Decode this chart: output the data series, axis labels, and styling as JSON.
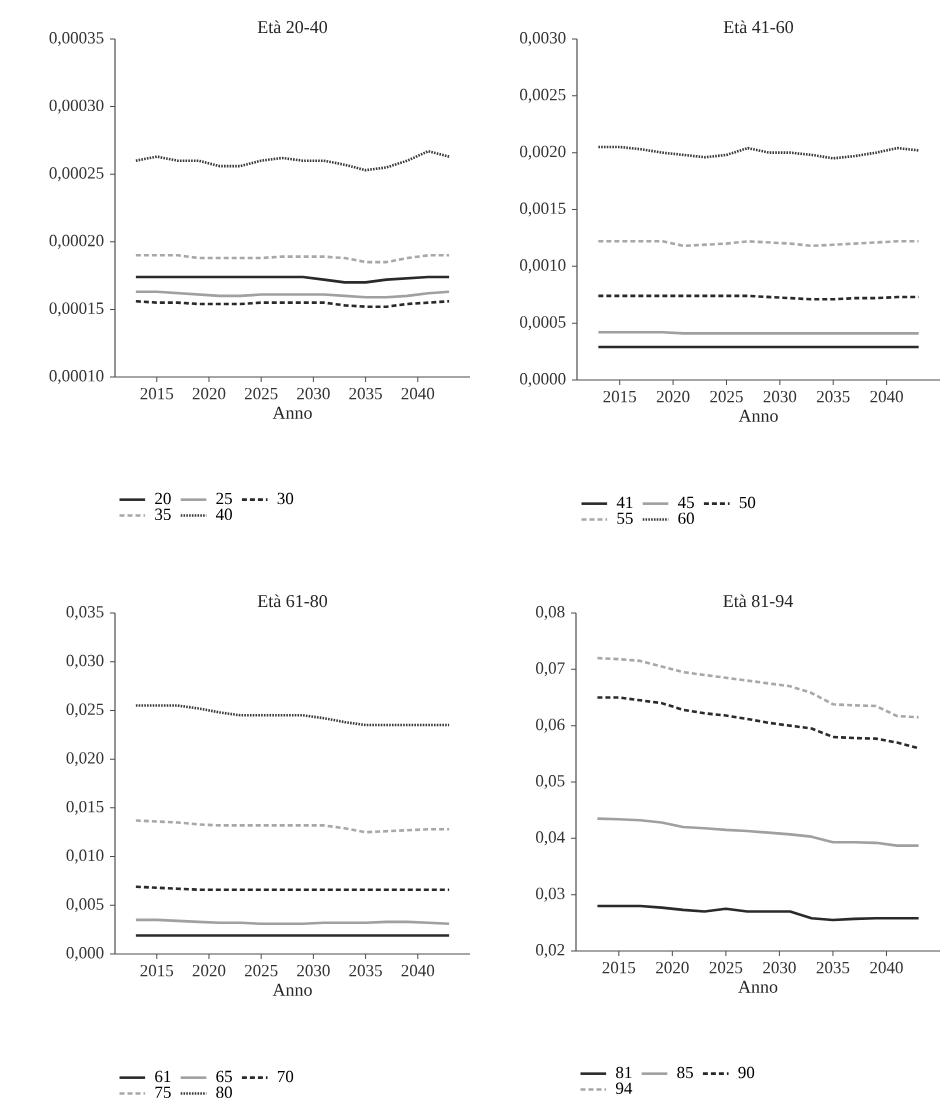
{
  "chart_data": [
    {
      "type": "line",
      "title": "Età 20-40",
      "xlabel": "Anno",
      "legend": "bottom",
      "grid": false,
      "x": [
        2013,
        2015,
        2017,
        2019,
        2021,
        2023,
        2025,
        2027,
        2029,
        2031,
        2033,
        2035,
        2037,
        2039,
        2041,
        2043
      ],
      "xlim": [
        2011,
        2045
      ],
      "xticks": [
        2015,
        2020,
        2025,
        2030,
        2035,
        2040
      ],
      "ylim": [
        0.0001,
        0.00035
      ],
      "yticks": [
        {
          "value": 0.0001,
          "label": "0,00010"
        },
        {
          "value": 0.00015,
          "label": "0,00015"
        },
        {
          "value": 0.0002,
          "label": "0,00020"
        },
        {
          "value": 0.00025,
          "label": "0,00025"
        },
        {
          "value": 0.0003,
          "label": "0,00030"
        },
        {
          "value": 0.00035,
          "label": "0,00035"
        }
      ],
      "series": [
        {
          "name": "20",
          "color": "#2a2a2a",
          "line_style": "solid",
          "values": [
            0.000174,
            0.000174,
            0.000174,
            0.000174,
            0.000174,
            0.000174,
            0.000174,
            0.000174,
            0.000174,
            0.000172,
            0.00017,
            0.00017,
            0.000172,
            0.000173,
            0.000174,
            0.000174
          ]
        },
        {
          "name": "25",
          "color": "#a0a0a0",
          "line_style": "solid",
          "values": [
            0.000163,
            0.000163,
            0.000162,
            0.000161,
            0.00016,
            0.00016,
            0.000161,
            0.000161,
            0.000161,
            0.000161,
            0.00016,
            0.000159,
            0.000159,
            0.00016,
            0.000162,
            0.000163
          ]
        },
        {
          "name": "30",
          "color": "#2a2a2a",
          "line_style": "dashed",
          "values": [
            0.000156,
            0.000155,
            0.000155,
            0.000154,
            0.000154,
            0.000154,
            0.000155,
            0.000155,
            0.000155,
            0.000155,
            0.000153,
            0.000152,
            0.000152,
            0.000154,
            0.000155,
            0.000156
          ]
        },
        {
          "name": "35",
          "color": "#a8a8a8",
          "line_style": "dashed",
          "values": [
            0.00019,
            0.00019,
            0.00019,
            0.000188,
            0.000188,
            0.000188,
            0.000188,
            0.000189,
            0.000189,
            0.000189,
            0.000188,
            0.000185,
            0.000185,
            0.000188,
            0.00019,
            0.00019
          ]
        },
        {
          "name": "40",
          "color": "#3a3a3a",
          "line_style": "dotted",
          "values": [
            0.00026,
            0.000263,
            0.00026,
            0.00026,
            0.000256,
            0.000256,
            0.00026,
            0.000262,
            0.00026,
            0.00026,
            0.000257,
            0.000253,
            0.000255,
            0.00026,
            0.000267,
            0.000263
          ]
        }
      ]
    },
    {
      "type": "line",
      "title": "Età 41-60",
      "xlabel": "Anno",
      "legend": "bottom",
      "grid": false,
      "x": [
        2013,
        2015,
        2017,
        2019,
        2021,
        2023,
        2025,
        2027,
        2029,
        2031,
        2033,
        2035,
        2037,
        2039,
        2041,
        2043
      ],
      "xlim": [
        2011,
        2045
      ],
      "xticks": [
        2015,
        2020,
        2025,
        2030,
        2035,
        2040
      ],
      "ylim": [
        0,
        0.003
      ],
      "yticks": [
        {
          "value": 0,
          "label": "0,0000"
        },
        {
          "value": 0.0005,
          "label": "0,0005"
        },
        {
          "value": 0.001,
          "label": "0,0010"
        },
        {
          "value": 0.0015,
          "label": "0,0015"
        },
        {
          "value": 0.002,
          "label": "0,0020"
        },
        {
          "value": 0.0025,
          "label": "0,0025"
        },
        {
          "value": 0.003,
          "label": "0,0030"
        }
      ],
      "series": [
        {
          "name": "41",
          "color": "#2a2a2a",
          "line_style": "solid",
          "values": [
            0.00029,
            0.00029,
            0.00029,
            0.00029,
            0.00029,
            0.00029,
            0.00029,
            0.00029,
            0.00029,
            0.00029,
            0.00029,
            0.00029,
            0.00029,
            0.00029,
            0.00029,
            0.00029
          ]
        },
        {
          "name": "45",
          "color": "#a0a0a0",
          "line_style": "solid",
          "values": [
            0.00042,
            0.00042,
            0.00042,
            0.00042,
            0.00041,
            0.00041,
            0.00041,
            0.00041,
            0.00041,
            0.00041,
            0.00041,
            0.00041,
            0.00041,
            0.00041,
            0.00041,
            0.00041
          ]
        },
        {
          "name": "50",
          "color": "#2a2a2a",
          "line_style": "dashed",
          "values": [
            0.00074,
            0.00074,
            0.00074,
            0.00074,
            0.00074,
            0.00074,
            0.00074,
            0.00074,
            0.00073,
            0.00072,
            0.00071,
            0.00071,
            0.00072,
            0.00072,
            0.00073,
            0.00073
          ]
        },
        {
          "name": "55",
          "color": "#a8a8a8",
          "line_style": "dashed",
          "values": [
            0.00122,
            0.00122,
            0.00122,
            0.00122,
            0.00118,
            0.00119,
            0.0012,
            0.00122,
            0.00121,
            0.0012,
            0.00118,
            0.00119,
            0.0012,
            0.00121,
            0.00122,
            0.00122
          ]
        },
        {
          "name": "60",
          "color": "#3a3a3a",
          "line_style": "dotted",
          "values": [
            0.00205,
            0.00205,
            0.00203,
            0.002,
            0.00198,
            0.00196,
            0.00198,
            0.00204,
            0.002,
            0.002,
            0.00198,
            0.00195,
            0.00197,
            0.002,
            0.00204,
            0.00202
          ]
        }
      ]
    },
    {
      "type": "line",
      "title": "Età 61-80",
      "xlabel": "Anno",
      "legend": "bottom",
      "grid": false,
      "x": [
        2013,
        2015,
        2017,
        2019,
        2021,
        2023,
        2025,
        2027,
        2029,
        2031,
        2033,
        2035,
        2037,
        2039,
        2041,
        2043
      ],
      "xlim": [
        2011,
        2045
      ],
      "xticks": [
        2015,
        2020,
        2025,
        2030,
        2035,
        2040
      ],
      "ylim": [
        0,
        0.035
      ],
      "yticks": [
        {
          "value": 0,
          "label": "0,000"
        },
        {
          "value": 0.005,
          "label": "0,005"
        },
        {
          "value": 0.01,
          "label": "0,010"
        },
        {
          "value": 0.015,
          "label": "0,015"
        },
        {
          "value": 0.02,
          "label": "0,020"
        },
        {
          "value": 0.025,
          "label": "0,025"
        },
        {
          "value": 0.03,
          "label": "0,030"
        },
        {
          "value": 0.035,
          "label": "0,035"
        }
      ],
      "series": [
        {
          "name": "61",
          "color": "#2a2a2a",
          "line_style": "solid",
          "values": [
            0.0019,
            0.0019,
            0.0019,
            0.0019,
            0.0019,
            0.0019,
            0.0019,
            0.0019,
            0.0019,
            0.0019,
            0.0019,
            0.0019,
            0.0019,
            0.0019,
            0.0019,
            0.0019
          ]
        },
        {
          "name": "65",
          "color": "#a0a0a0",
          "line_style": "solid",
          "values": [
            0.0035,
            0.0035,
            0.0034,
            0.0033,
            0.0032,
            0.0032,
            0.0031,
            0.0031,
            0.0031,
            0.0032,
            0.0032,
            0.0032,
            0.0033,
            0.0033,
            0.0032,
            0.0031
          ]
        },
        {
          "name": "70",
          "color": "#2a2a2a",
          "line_style": "dashed",
          "values": [
            0.0069,
            0.0068,
            0.0067,
            0.0066,
            0.0066,
            0.0066,
            0.0066,
            0.0066,
            0.0066,
            0.0066,
            0.0066,
            0.0066,
            0.0066,
            0.0066,
            0.0066,
            0.0066
          ]
        },
        {
          "name": "75",
          "color": "#a8a8a8",
          "line_style": "dashed",
          "values": [
            0.0137,
            0.0136,
            0.0135,
            0.0133,
            0.0132,
            0.0132,
            0.0132,
            0.0132,
            0.0132,
            0.0132,
            0.0129,
            0.0125,
            0.0126,
            0.0127,
            0.0128,
            0.0128
          ]
        },
        {
          "name": "80",
          "color": "#3a3a3a",
          "line_style": "dotted",
          "values": [
            0.0255,
            0.0255,
            0.0255,
            0.0252,
            0.0248,
            0.0245,
            0.0245,
            0.0245,
            0.0245,
            0.0242,
            0.0238,
            0.0235,
            0.0235,
            0.0235,
            0.0235,
            0.0235
          ]
        }
      ]
    },
    {
      "type": "line",
      "title": "Età 81-94",
      "xlabel": "Anno",
      "legend": "bottom",
      "grid": false,
      "x": [
        2013,
        2015,
        2017,
        2019,
        2021,
        2023,
        2025,
        2027,
        2029,
        2031,
        2033,
        2035,
        2037,
        2039,
        2041,
        2043
      ],
      "xlim": [
        2011,
        2045
      ],
      "xticks": [
        2015,
        2020,
        2025,
        2030,
        2035,
        2040
      ],
      "ylim": [
        0.02,
        0.08
      ],
      "yticks": [
        {
          "value": 0.02,
          "label": "0,02"
        },
        {
          "value": 0.03,
          "label": "0,03"
        },
        {
          "value": 0.04,
          "label": "0,04"
        },
        {
          "value": 0.05,
          "label": "0,05"
        },
        {
          "value": 0.06,
          "label": "0,06"
        },
        {
          "value": 0.07,
          "label": "0,07"
        },
        {
          "value": 0.08,
          "label": "0,08"
        }
      ],
      "series": [
        {
          "name": "81",
          "color": "#2a2a2a",
          "line_style": "solid",
          "values": [
            0.028,
            0.028,
            0.028,
            0.0277,
            0.0273,
            0.027,
            0.0275,
            0.027,
            0.027,
            0.027,
            0.0258,
            0.0255,
            0.0257,
            0.0258,
            0.0258,
            0.0258
          ]
        },
        {
          "name": "85",
          "color": "#a0a0a0",
          "line_style": "solid",
          "values": [
            0.0435,
            0.0434,
            0.0432,
            0.0428,
            0.042,
            0.0418,
            0.0415,
            0.0413,
            0.041,
            0.0407,
            0.0403,
            0.0393,
            0.0393,
            0.0392,
            0.0387,
            0.0387
          ]
        },
        {
          "name": "90",
          "color": "#2a2a2a",
          "line_style": "dashed",
          "values": [
            0.065,
            0.065,
            0.0645,
            0.064,
            0.0628,
            0.0622,
            0.0618,
            0.0612,
            0.0605,
            0.06,
            0.0595,
            0.058,
            0.0578,
            0.0577,
            0.057,
            0.056
          ]
        },
        {
          "name": "94",
          "color": "#a8a8a8",
          "line_style": "dashed",
          "values": [
            0.072,
            0.0718,
            0.0715,
            0.0705,
            0.0695,
            0.069,
            0.0685,
            0.068,
            0.0675,
            0.067,
            0.0658,
            0.0638,
            0.0636,
            0.0635,
            0.0617,
            0.0615
          ]
        }
      ]
    }
  ]
}
